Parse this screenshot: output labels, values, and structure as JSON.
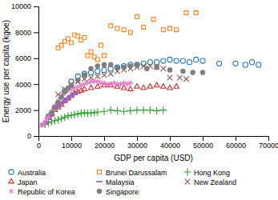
{
  "chart_data": {
    "type": "scatter",
    "xlabel": "GDP per capita (USD)",
    "ylabel": "Energy use per capita (kgoe)",
    "xlim": [
      0,
      70000
    ],
    "ylim": [
      0,
      10000
    ],
    "xticks": [
      0,
      10000,
      20000,
      30000,
      40000,
      50000,
      60000,
      70000
    ],
    "yticks": [
      0,
      2000,
      4000,
      6000,
      8000,
      10000
    ],
    "grid": false,
    "legend": "bottom",
    "series": [
      {
        "name": "Australia",
        "marker": "circle",
        "x": [
          3000,
          5000,
          8000,
          10000,
          12000,
          14000,
          16000,
          18000,
          20000,
          22000,
          24000,
          26000,
          28000,
          30000,
          32000,
          34000,
          36000,
          38000,
          40000,
          42000,
          44000,
          46000,
          48000,
          50000,
          55000,
          60000,
          63000,
          65000,
          67000
        ],
        "values": [
          1500,
          2200,
          3500,
          4200,
          4600,
          4800,
          4900,
          5000,
          5100,
          5200,
          5300,
          5400,
          5500,
          5500,
          5600,
          5700,
          5700,
          5800,
          5900,
          5800,
          5800,
          5700,
          5900,
          5800,
          5600,
          5600,
          5500,
          5700,
          5500
        ]
      },
      {
        "name": "Brunei Darussalam",
        "marker": "square",
        "x": [
          6000,
          7000,
          8000,
          9000,
          10000,
          11000,
          12000,
          13000,
          14000,
          15000,
          16000,
          17000,
          18000,
          19000,
          20000,
          22000,
          24000,
          26000,
          28000,
          30000,
          32000,
          35000,
          38000,
          40000,
          42000,
          45000,
          48000
        ],
        "values": [
          6800,
          7000,
          7300,
          7500,
          7200,
          7800,
          7700,
          7400,
          7600,
          6200,
          6500,
          6100,
          5900,
          7000,
          6200,
          8500,
          8300,
          8200,
          8000,
          9200,
          8400,
          9000,
          8200,
          8300,
          8200,
          9500,
          9500
        ]
      },
      {
        "name": "Hong Kong",
        "marker": "plus",
        "x": [
          2000,
          3000,
          4000,
          5000,
          6000,
          7000,
          8000,
          9000,
          10000,
          11000,
          12000,
          13000,
          14000,
          15000,
          16000,
          17000,
          18000,
          20000,
          22000,
          24000,
          26000,
          28000,
          30000,
          32000,
          34000,
          36000,
          38000
        ],
        "values": [
          900,
          1000,
          1100,
          1200,
          1250,
          1350,
          1450,
          1550,
          1600,
          1650,
          1700,
          1750,
          1800,
          1750,
          1780,
          1800,
          1850,
          1900,
          2000,
          1950,
          1900,
          1950,
          2000,
          2000,
          2000,
          1950,
          2000
        ]
      },
      {
        "name": "Japan",
        "marker": "triangle",
        "x": [
          3000,
          4000,
          5000,
          6000,
          7000,
          8000,
          9000,
          10000,
          11000,
          12000,
          13000,
          14000,
          16000,
          18000,
          20000,
          22000,
          24000,
          26000,
          28000,
          30000,
          32000,
          34000,
          36000,
          38000,
          40000,
          42000
        ],
        "values": [
          1400,
          1700,
          2000,
          2200,
          2400,
          2700,
          2900,
          3100,
          3300,
          3400,
          3500,
          3600,
          3700,
          3800,
          3900,
          3900,
          3800,
          3700,
          3600,
          3800,
          3700,
          3800,
          3900,
          3800,
          3700,
          3800
        ]
      },
      {
        "name": "Malaysia",
        "marker": "dash",
        "x": [
          1500,
          2000,
          2500,
          3000,
          3500,
          4000,
          4500,
          5000,
          5500,
          6000,
          6500,
          7000,
          7500,
          8000,
          8500,
          9000,
          9500,
          10000,
          10500,
          11000,
          11500
        ],
        "values": [
          900,
          1000,
          1100,
          1300,
          1500,
          1700,
          1900,
          2100,
          2200,
          2300,
          2400,
          2500,
          2600,
          2700,
          2800,
          2900,
          3000,
          3100,
          3200,
          3300,
          3400
        ]
      },
      {
        "name": "New Zealand",
        "marker": "x",
        "x": [
          6000,
          8000,
          10000,
          12000,
          14000,
          16000,
          18000,
          20000,
          22000,
          24000,
          26000,
          28000,
          30000,
          32000,
          34000,
          36000,
          38000,
          40000,
          43000,
          45000
        ],
        "values": [
          3200,
          3600,
          4000,
          4200,
          4400,
          4500,
          4600,
          4700,
          4800,
          5000,
          5100,
          5200,
          5300,
          5400,
          5400,
          5300,
          5200,
          4500,
          4500,
          4400
        ]
      },
      {
        "name": "Republic of Korea",
        "marker": "asterisk",
        "x": [
          1000,
          1200,
          1500,
          2000,
          2500,
          3000,
          3500,
          4000,
          4500,
          5000,
          5500,
          6000,
          6500,
          7000,
          7500,
          8000,
          9000,
          10000,
          11000,
          12000,
          13000,
          14000,
          15000,
          16000,
          17000,
          18000,
          19000,
          20000,
          21000,
          22000,
          23000,
          24000,
          25000,
          26000,
          27000,
          28000
        ],
        "values": [
          800,
          850,
          950,
          1100,
          1300,
          1500,
          1700,
          1900,
          2100,
          2300,
          2500,
          2700,
          2900,
          3100,
          3200,
          3400,
          3500,
          3600,
          3700,
          3800,
          3900,
          4000,
          4100,
          4200,
          4200,
          4200,
          4100,
          4100,
          4000,
          4000,
          4100,
          4000,
          4000,
          4100,
          4000,
          4100
        ]
      },
      {
        "name": "Singapore",
        "marker": "dot",
        "x": [
          4000,
          5000,
          6000,
          7000,
          8000,
          9000,
          10000,
          12000,
          14000,
          16000,
          18000,
          20000,
          22000,
          24000,
          26000,
          28000,
          30000,
          33000,
          36000,
          40000,
          44000,
          47000,
          50000
        ],
        "values": [
          1800,
          2200,
          2600,
          3000,
          3400,
          3700,
          3900,
          4300,
          4700,
          5200,
          5400,
          5500,
          5500,
          5300,
          5300,
          5400,
          5500,
          5200,
          5300,
          5100,
          5000,
          4900,
          4900
        ]
      }
    ]
  }
}
